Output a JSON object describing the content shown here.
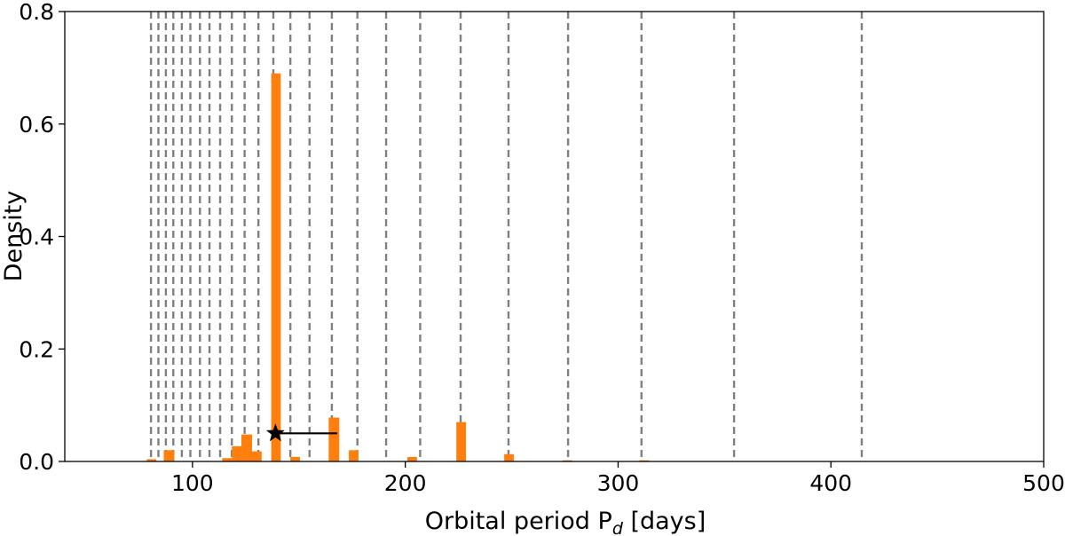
{
  "chart_data": {
    "type": "bar",
    "title": "",
    "xlabel_main": "Orbital period P",
    "xlabel_sub": "d",
    "xlabel_unit": " [days]",
    "ylabel": "Density",
    "xlim": [
      40,
      500
    ],
    "ylim": [
      0,
      0.8
    ],
    "xticks": [
      100,
      200,
      300,
      400,
      500
    ],
    "yticks": [
      0.0,
      0.2,
      0.4,
      0.6,
      0.8
    ],
    "xtick_labels": [
      "100",
      "200",
      "300",
      "400",
      "500"
    ],
    "ytick_labels": [
      "0.0",
      "0.2",
      "0.4",
      "0.6",
      "0.8"
    ],
    "bar_color": "#ff7f0e",
    "vline_color": "#808080",
    "grid": false,
    "bins": [
      {
        "x0": 78.5,
        "x1": 83,
        "value": 0.004
      },
      {
        "x0": 86.5,
        "x1": 91.5,
        "value": 0.02
      },
      {
        "x0": 114,
        "x1": 118.5,
        "value": 0.006
      },
      {
        "x0": 118.5,
        "x1": 123,
        "value": 0.027
      },
      {
        "x0": 123,
        "x1": 128,
        "value": 0.048
      },
      {
        "x0": 128,
        "x1": 132.5,
        "value": 0.018
      },
      {
        "x0": 137,
        "x1": 141.5,
        "value": 0.69
      },
      {
        "x0": 146,
        "x1": 150.5,
        "value": 0.008
      },
      {
        "x0": 164,
        "x1": 169,
        "value": 0.078
      },
      {
        "x0": 173.5,
        "x1": 178,
        "value": 0.02
      },
      {
        "x0": 201,
        "x1": 205.5,
        "value": 0.008
      },
      {
        "x0": 224,
        "x1": 228.5,
        "value": 0.07
      },
      {
        "x0": 246.5,
        "x1": 251,
        "value": 0.013
      },
      {
        "x0": 274,
        "x1": 278.5,
        "value": 0.002
      },
      {
        "x0": 310,
        "x1": 314.5,
        "value": 0.002
      }
    ],
    "vlines": [
      80.5,
      84,
      87.5,
      91,
      95,
      99,
      103.5,
      108,
      113,
      118.5,
      124.5,
      131,
      138,
      146,
      155,
      165.5,
      177.5,
      191,
      207,
      226,
      248.5,
      276.5,
      311,
      354.5,
      414.5
    ],
    "marker": {
      "x": 139,
      "y": 0.05,
      "symbol": "star",
      "errorbar_x": [
        139,
        168
      ]
    }
  }
}
